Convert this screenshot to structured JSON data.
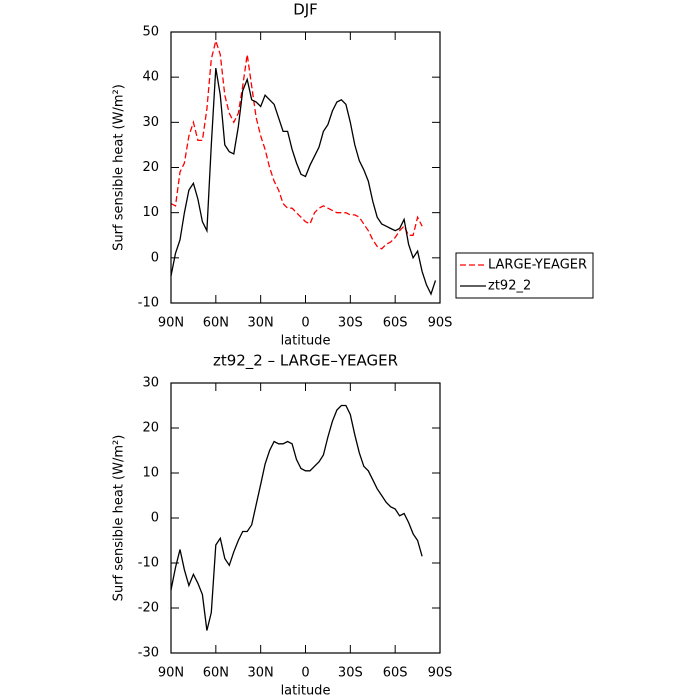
{
  "chart_data": [
    {
      "type": "line",
      "title": "DJF",
      "xlabel": "latitude",
      "ylabel": "Surf sensible heat (W/m²)",
      "x": [
        90,
        87,
        84,
        81,
        78,
        75,
        72,
        69,
        66,
        63,
        60,
        57,
        54,
        51,
        48,
        45,
        42,
        39,
        36,
        33,
        30,
        27,
        24,
        21,
        18,
        15,
        12,
        9,
        6,
        3,
        0,
        -3,
        -6,
        -9,
        -12,
        -15,
        -18,
        -21,
        -24,
        -27,
        -30,
        -33,
        -36,
        -39,
        -42,
        -45,
        -48,
        -51,
        -54,
        -57,
        -60,
        -63,
        -66,
        -69,
        -72,
        -75,
        -78,
        -81,
        -84,
        -87
      ],
      "xlim": [
        90,
        -90
      ],
      "xticks": [
        {
          "value": 90,
          "label": "90N"
        },
        {
          "value": 60,
          "label": "60N"
        },
        {
          "value": 30,
          "label": "30N"
        },
        0,
        {
          "value": -30,
          "label": "30S"
        },
        {
          "value": -60,
          "label": "60S"
        },
        {
          "value": -90,
          "label": "90S"
        }
      ],
      "ylim": [
        -10,
        50
      ],
      "yticks": [
        -10,
        0,
        10,
        20,
        30,
        40,
        50
      ],
      "legend": "right",
      "series": [
        {
          "name": "LARGE-YEAGER",
          "color": "#ff0000",
          "line_style": "dashed",
          "values": [
            12,
            11.5,
            19,
            21,
            27,
            30,
            26,
            26,
            33,
            44,
            48,
            45,
            36,
            32,
            30,
            32,
            38,
            45,
            38,
            31,
            27,
            24,
            20,
            17,
            15,
            12,
            11,
            11,
            10,
            9,
            8,
            7.5,
            10,
            11,
            11.5,
            11,
            10.5,
            10,
            10,
            10,
            9.5,
            9.5,
            9,
            7.5,
            6,
            4,
            2.5,
            2,
            3,
            3.5,
            4.5,
            6,
            7,
            5,
            5,
            9,
            7,
            null,
            null,
            null
          ]
        },
        {
          "name": "zt92_2",
          "color": "#000000",
          "line_style": "solid",
          "values": [
            -4,
            1,
            4,
            10,
            15,
            16.5,
            13,
            8,
            6,
            25,
            42,
            36,
            25,
            23.5,
            23,
            29,
            37,
            39.5,
            35,
            34.5,
            33.5,
            36,
            35,
            34,
            31,
            28,
            28,
            24,
            21,
            18.5,
            18,
            20.5,
            22.5,
            24.5,
            28,
            29.5,
            32.5,
            34.5,
            35,
            34,
            30,
            25,
            21.5,
            19.5,
            17,
            12.5,
            9,
            7.5,
            7,
            6.5,
            6,
            6.5,
            8.5,
            3,
            0,
            1.5,
            -3,
            -6,
            -8,
            -5
          ]
        }
      ]
    },
    {
      "type": "line",
      "title": "zt92_2 – LARGE–YEAGER",
      "xlabel": "latitude",
      "ylabel": "Surf sensible heat (W/m²)",
      "x": [
        90,
        87,
        84,
        81,
        78,
        75,
        72,
        69,
        66,
        63,
        60,
        57,
        54,
        51,
        48,
        45,
        42,
        39,
        36,
        33,
        30,
        27,
        24,
        21,
        18,
        15,
        12,
        9,
        6,
        3,
        0,
        -3,
        -6,
        -9,
        -12,
        -15,
        -18,
        -21,
        -24,
        -27,
        -30,
        -33,
        -36,
        -39,
        -42,
        -45,
        -48,
        -51,
        -54,
        -57,
        -60,
        -63,
        -66,
        -69,
        -72,
        -75,
        -78,
        -81,
        -84,
        -87
      ],
      "xlim": [
        90,
        -90
      ],
      "xticks": [
        {
          "value": 90,
          "label": "90N"
        },
        {
          "value": 60,
          "label": "60N"
        },
        {
          "value": 30,
          "label": "30N"
        },
        0,
        {
          "value": -30,
          "label": "30S"
        },
        {
          "value": -60,
          "label": "60S"
        },
        {
          "value": -90,
          "label": "90S"
        }
      ],
      "ylim": [
        -30,
        30
      ],
      "yticks": [
        -30,
        -20,
        -10,
        0,
        10,
        20,
        30
      ],
      "series": [
        {
          "color": "#000000",
          "line_style": "solid",
          "values": [
            -16,
            -11,
            -7,
            -11.5,
            -15,
            -12.5,
            -14.5,
            -17,
            -25,
            -21,
            -6,
            -4.5,
            -9,
            -10.5,
            -7.5,
            -5,
            -3,
            -3,
            -1.5,
            3,
            7.5,
            12,
            15,
            17,
            16.5,
            16.5,
            17,
            16.5,
            13,
            11,
            10.5,
            10.5,
            11.5,
            12.5,
            14,
            18,
            21.5,
            24,
            25,
            25,
            23,
            18.5,
            14.5,
            11.5,
            10.5,
            8.5,
            6.5,
            5,
            3.5,
            2.5,
            2,
            0.5,
            1,
            -1,
            -3.5,
            -5,
            -8.5,
            null,
            null,
            null
          ]
        }
      ]
    }
  ]
}
